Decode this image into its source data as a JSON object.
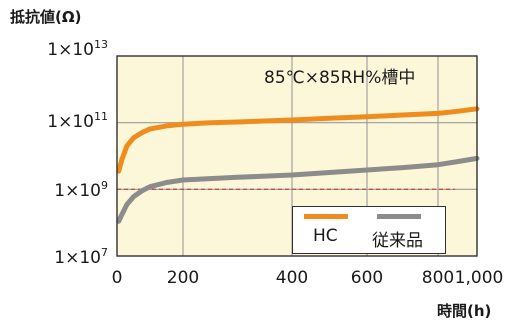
{
  "chart_data": {
    "type": "line",
    "ylabel": "抵抗値(Ω)",
    "xlabel": "時間(h)",
    "x_ticks": [
      "0",
      "200",
      "400",
      "600",
      "800",
      "1,000"
    ],
    "xlim": [
      0,
      1000
    ],
    "y_scale": "log",
    "ylim": [
      10000000.0,
      10000000000000.0
    ],
    "y_ticks": [
      {
        "base": "1×10",
        "exp": "7",
        "value": 10000000.0
      },
      {
        "base": "1×10",
        "exp": "9",
        "value": 1000000000.0
      },
      {
        "base": "1×10",
        "exp": "11",
        "value": 100000000000.0
      },
      {
        "base": "1×10",
        "exp": "13",
        "value": 10000000000000.0
      }
    ],
    "annotation": "85℃×85RH%槽中",
    "reference_line": {
      "y": 1000000000.0,
      "style": "dashed",
      "color": "#c0504d"
    },
    "grid": true,
    "background": "#fdf7da",
    "legend_position": "bottom-right",
    "series": [
      {
        "name": "HC",
        "color": "#f08c1e",
        "x": [
          5,
          15,
          30,
          50,
          75,
          100,
          150,
          200,
          250,
          300,
          400,
          500,
          600,
          700,
          800,
          900,
          1000
        ],
        "y": [
          3500000000.0,
          8000000000.0,
          20000000000.0,
          35000000000.0,
          50000000000.0,
          65000000000.0,
          80000000000.0,
          90000000000.0,
          100000000000.0,
          105000000000.0,
          120000000000.0,
          135000000000.0,
          150000000000.0,
          170000000000.0,
          190000000000.0,
          220000000000.0,
          260000000000.0
        ]
      },
      {
        "name": "従来品",
        "color": "#8c8c8c",
        "x": [
          5,
          15,
          30,
          50,
          75,
          100,
          150,
          200,
          250,
          300,
          400,
          500,
          600,
          700,
          800,
          900,
          1000
        ],
        "y": [
          110000000.0,
          180000000.0,
          350000000.0,
          600000000.0,
          900000000.0,
          1200000000.0,
          1600000000.0,
          1900000000.0,
          2100000000.0,
          2300000000.0,
          2700000000.0,
          3200000000.0,
          3800000000.0,
          4500000000.0,
          5500000000.0,
          6800000000.0,
          8500000000.0
        ]
      }
    ]
  }
}
